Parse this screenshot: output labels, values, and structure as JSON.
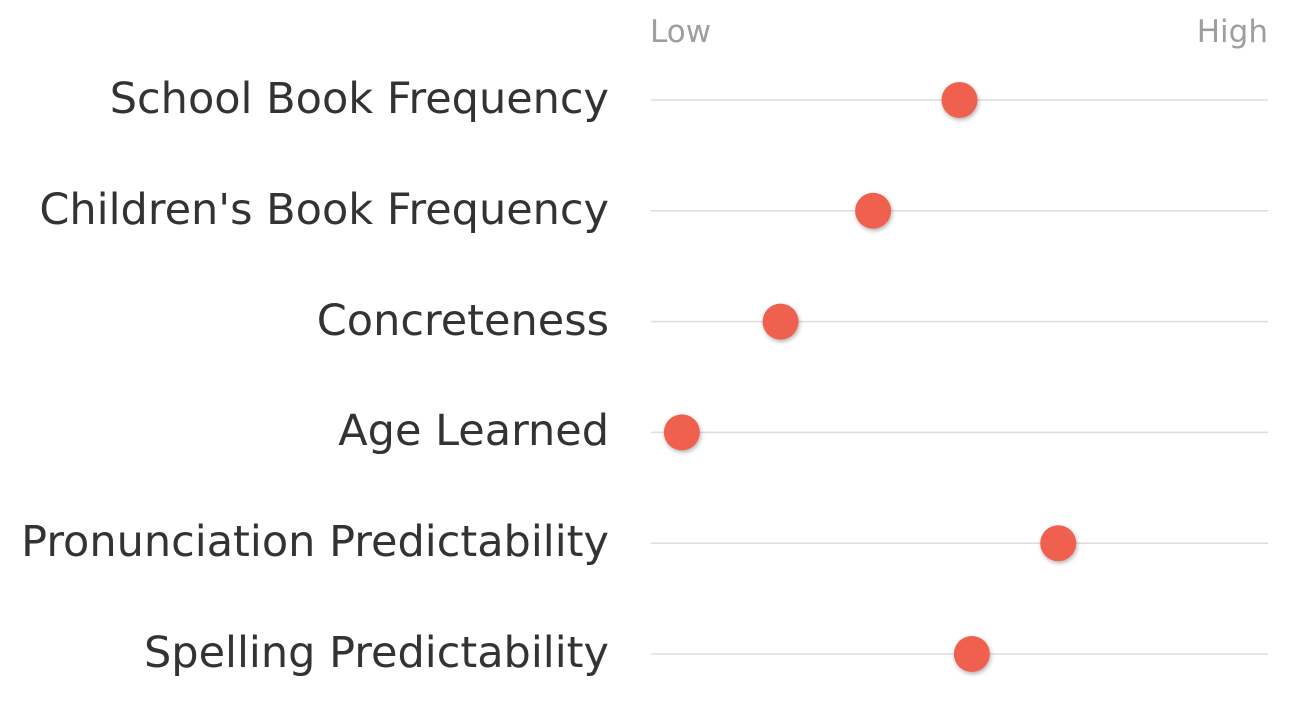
{
  "chart_data": {
    "type": "scatter",
    "scale_labels": {
      "low": "Low",
      "high": "High"
    },
    "categories": [
      "School Book Frequency",
      "Children's Book Frequency",
      "Concreteness",
      "Age Learned",
      "Pronunciation Predictability",
      "Spelling Predictability"
    ],
    "values": [
      0.5,
      0.36,
      0.21,
      0.05,
      0.66,
      0.52
    ],
    "xlim": [
      0,
      1
    ],
    "grid": true,
    "colors": {
      "dot": "#f0604f",
      "line": "#dddddd",
      "label": "#333333",
      "scale_label": "#9e9e9e"
    }
  }
}
